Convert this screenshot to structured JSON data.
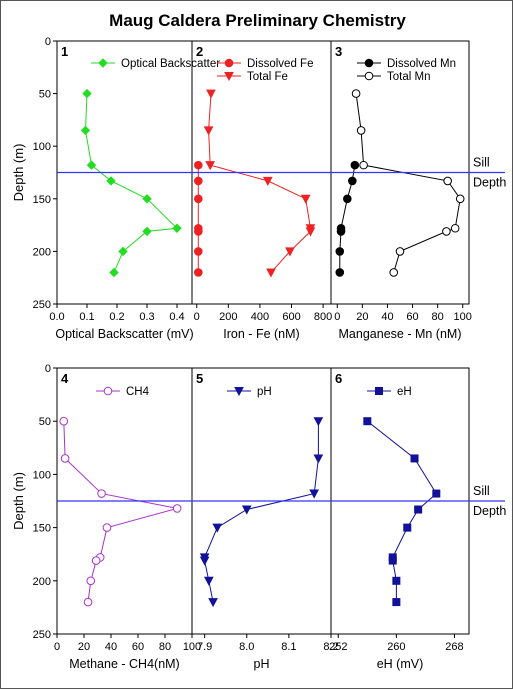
{
  "title": "Maug Caldera Preliminary Chemistry",
  "colors": {
    "sill": "#3333ff",
    "green": "#22dd22",
    "red": "#ee2222",
    "black": "#000000",
    "purple": "#aa33cc",
    "navy": "#111199"
  },
  "sill": {
    "depth": 125,
    "label_line1": "Sill",
    "label_line2": "Depth"
  },
  "chart_data": [
    {
      "type": "line",
      "panel": "1",
      "xlabel": "Optical Backscatter (mV)",
      "ylabel": "Depth (m)",
      "xlim": [
        0.0,
        0.45
      ],
      "ylim": [
        0,
        250
      ],
      "xticks": [
        0.0,
        0.1,
        0.2,
        0.3,
        0.4
      ],
      "xtick_labels": [
        "0.0",
        "0.1",
        "0.2",
        "0.3",
        "0.4"
      ],
      "yticks": [
        0,
        50,
        100,
        150,
        200,
        250
      ],
      "ytick_labels": [
        "0",
        "50",
        "100",
        "150",
        "200",
        "250"
      ],
      "legend_position": "top",
      "series": [
        {
          "name": "Optical Backscatter",
          "color": "#22dd22",
          "marker": "diamond",
          "points": [
            [
              0.1,
              50
            ],
            [
              0.095,
              85
            ],
            [
              0.115,
              118
            ],
            [
              0.18,
              133
            ],
            [
              0.3,
              150
            ],
            [
              0.4,
              178
            ],
            [
              0.3,
              181
            ],
            [
              0.22,
              200
            ],
            [
              0.19,
              220
            ]
          ]
        }
      ]
    },
    {
      "type": "line",
      "panel": "2",
      "xlabel": "Iron - Fe (nM)",
      "ylabel": "",
      "xlim": [
        -30,
        850
      ],
      "ylim": [
        0,
        250
      ],
      "xticks": [
        0,
        200,
        400,
        600,
        800
      ],
      "xtick_labels": [
        "0",
        "200",
        "400",
        "600",
        "800"
      ],
      "legend_position": "top",
      "series": [
        {
          "name": "Dissolved Fe",
          "color": "#ee2222",
          "marker": "circle",
          "points": [
            [
              10,
              118
            ],
            [
              10,
              133
            ],
            [
              10,
              150
            ],
            [
              10,
              178
            ],
            [
              10,
              181
            ],
            [
              10,
              200
            ],
            [
              10,
              220
            ]
          ]
        },
        {
          "name": "Total Fe",
          "color": "#ee2222",
          "marker": "triangle-down",
          "points": [
            [
              90,
              50
            ],
            [
              75,
              85
            ],
            [
              85,
              118
            ],
            [
              450,
              133
            ],
            [
              690,
              150
            ],
            [
              720,
              178
            ],
            [
              720,
              181
            ],
            [
              590,
              200
            ],
            [
              470,
              220
            ]
          ]
        }
      ]
    },
    {
      "type": "line",
      "panel": "3",
      "xlabel": "Manganese - Mn (nM)",
      "ylabel": "",
      "xlim": [
        -5,
        105
      ],
      "ylim": [
        0,
        250
      ],
      "xticks": [
        0,
        20,
        40,
        60,
        80,
        100
      ],
      "xtick_labels": [
        "0",
        "20",
        "40",
        "60",
        "80",
        "100"
      ],
      "legend_position": "top",
      "series": [
        {
          "name": "Dissolved Mn",
          "color": "#000000",
          "marker": "circle",
          "points": [
            [
              14,
              118
            ],
            [
              12,
              133
            ],
            [
              8,
              150
            ],
            [
              3,
              178
            ],
            [
              3,
              181
            ],
            [
              2,
              200
            ],
            [
              2,
              220
            ]
          ]
        },
        {
          "name": "Total Mn",
          "color": "#000000",
          "marker": "circle-open",
          "points": [
            [
              15,
              50
            ],
            [
              19,
              85
            ],
            [
              21,
              118
            ],
            [
              88,
              133
            ],
            [
              98,
              150
            ],
            [
              94,
              178
            ],
            [
              87,
              181
            ],
            [
              50,
              200
            ],
            [
              45,
              220
            ]
          ]
        }
      ]
    },
    {
      "type": "line",
      "panel": "4",
      "xlabel": "Methane - CH4(nM)",
      "ylabel": "Depth (m)",
      "xlim": [
        0,
        100
      ],
      "ylim": [
        0,
        250
      ],
      "xticks": [
        0,
        20,
        40,
        60,
        80,
        100
      ],
      "xtick_labels": [
        "0",
        "20",
        "40",
        "60",
        "80",
        "100"
      ],
      "yticks": [
        0,
        50,
        100,
        150,
        200,
        250
      ],
      "ytick_labels": [
        "0",
        "50",
        "100",
        "150",
        "200",
        "250"
      ],
      "legend_position": "top",
      "series": [
        {
          "name": "CH4",
          "color": "#aa33cc",
          "marker": "circle-open",
          "points": [
            [
              5,
              50
            ],
            [
              6,
              85
            ],
            [
              33,
              118
            ],
            [
              89,
              132
            ],
            [
              37,
              150
            ],
            [
              32,
              178
            ],
            [
              29,
              181
            ],
            [
              25,
              200
            ],
            [
              23,
              220
            ]
          ]
        }
      ]
    },
    {
      "type": "line",
      "panel": "5",
      "xlabel": "pH",
      "ylabel": "",
      "xlim": [
        7.87,
        8.2
      ],
      "ylim": [
        0,
        250
      ],
      "xticks": [
        7.9,
        8.0,
        8.1,
        8.2
      ],
      "xtick_labels": [
        "7.9",
        "8.0",
        "8.1",
        "8.2"
      ],
      "legend_position": "top",
      "series": [
        {
          "name": "pH",
          "color": "#111199",
          "marker": "triangle-down",
          "points": [
            [
              8.17,
              50
            ],
            [
              8.17,
              85
            ],
            [
              8.16,
              118
            ],
            [
              8.0,
              133
            ],
            [
              7.93,
              150
            ],
            [
              7.9,
              178
            ],
            [
              7.9,
              181
            ],
            [
              7.91,
              200
            ],
            [
              7.92,
              220
            ]
          ]
        }
      ]
    },
    {
      "type": "line",
      "panel": "6",
      "xlabel": "eH (mV)",
      "ylabel": "",
      "xlim": [
        251,
        270
      ],
      "ylim": [
        0,
        250
      ],
      "xticks": [
        252,
        260,
        268
      ],
      "xtick_labels": [
        "252",
        "260",
        "268"
      ],
      "legend_position": "top",
      "series": [
        {
          "name": "eH",
          "color": "#111199",
          "marker": "square",
          "points": [
            [
              256,
              50
            ],
            [
              262.5,
              85
            ],
            [
              265.5,
              118
            ],
            [
              263,
              133
            ],
            [
              261.5,
              150
            ],
            [
              259.5,
              178
            ],
            [
              259.5,
              181
            ],
            [
              260,
              200
            ],
            [
              260,
              220
            ]
          ]
        }
      ]
    }
  ]
}
